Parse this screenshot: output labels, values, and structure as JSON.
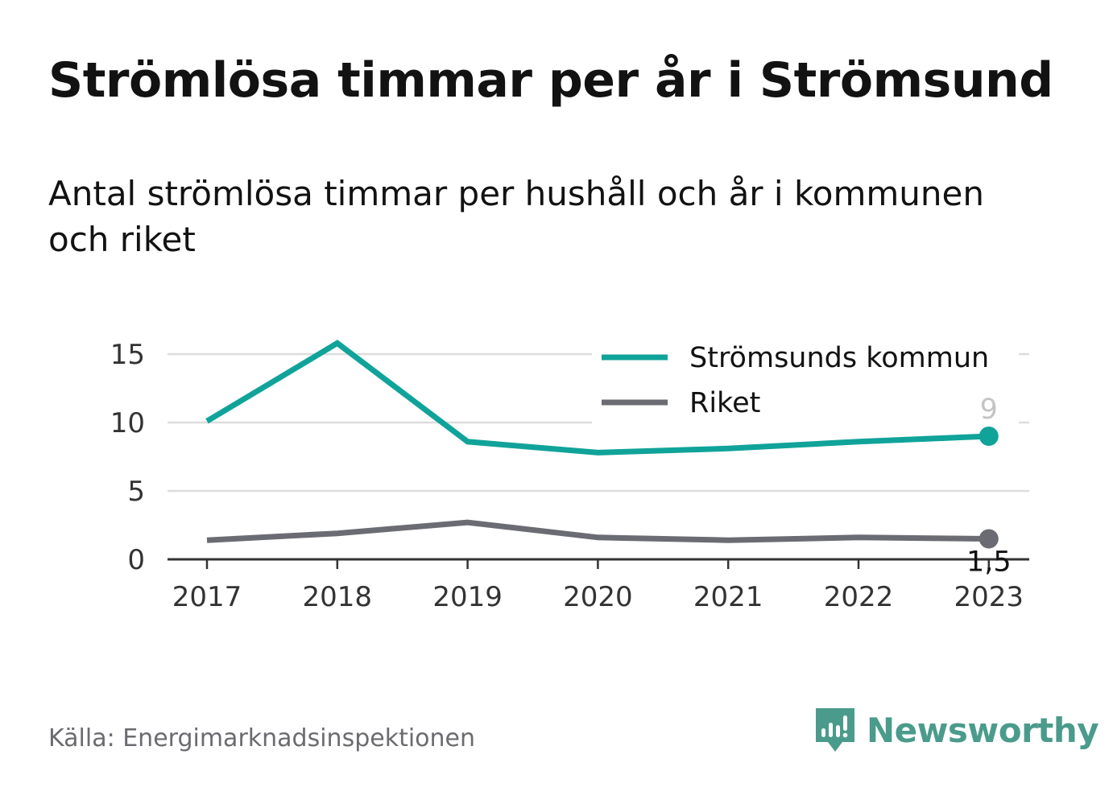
{
  "header": {
    "title": "Strömlösa timmar per år i Strömsund",
    "subtitle": "Antal strömlösa timmar per hushåll och år i kommunen och riket"
  },
  "footer": {
    "source": "Källa: Energimarknadsinspektionen",
    "brand": "Newsworthy",
    "brand_icon": "bar-chart-speech-bubble-icon"
  },
  "colors": {
    "kommun": "#10a39a",
    "riket": "#6b6b73",
    "grid": "#dddddd",
    "baseline": "#333333",
    "brand": "#4a9b8b"
  },
  "chart_data": {
    "type": "line",
    "categories": [
      "2017",
      "2018",
      "2019",
      "2020",
      "2021",
      "2022",
      "2023"
    ],
    "series": [
      {
        "name": "Strömsunds kommun",
        "values": [
          10.1,
          15.8,
          8.6,
          7.8,
          8.1,
          8.6,
          9.0
        ],
        "end_label": "9"
      },
      {
        "name": "Riket",
        "values": [
          1.4,
          1.9,
          2.7,
          1.6,
          1.4,
          1.6,
          1.5
        ],
        "end_label": "1,5"
      }
    ],
    "yticks": [
      "0",
      "5",
      "10",
      "15"
    ],
    "ylim": [
      0,
      15
    ],
    "grid": true,
    "legend_position": "top-right"
  }
}
